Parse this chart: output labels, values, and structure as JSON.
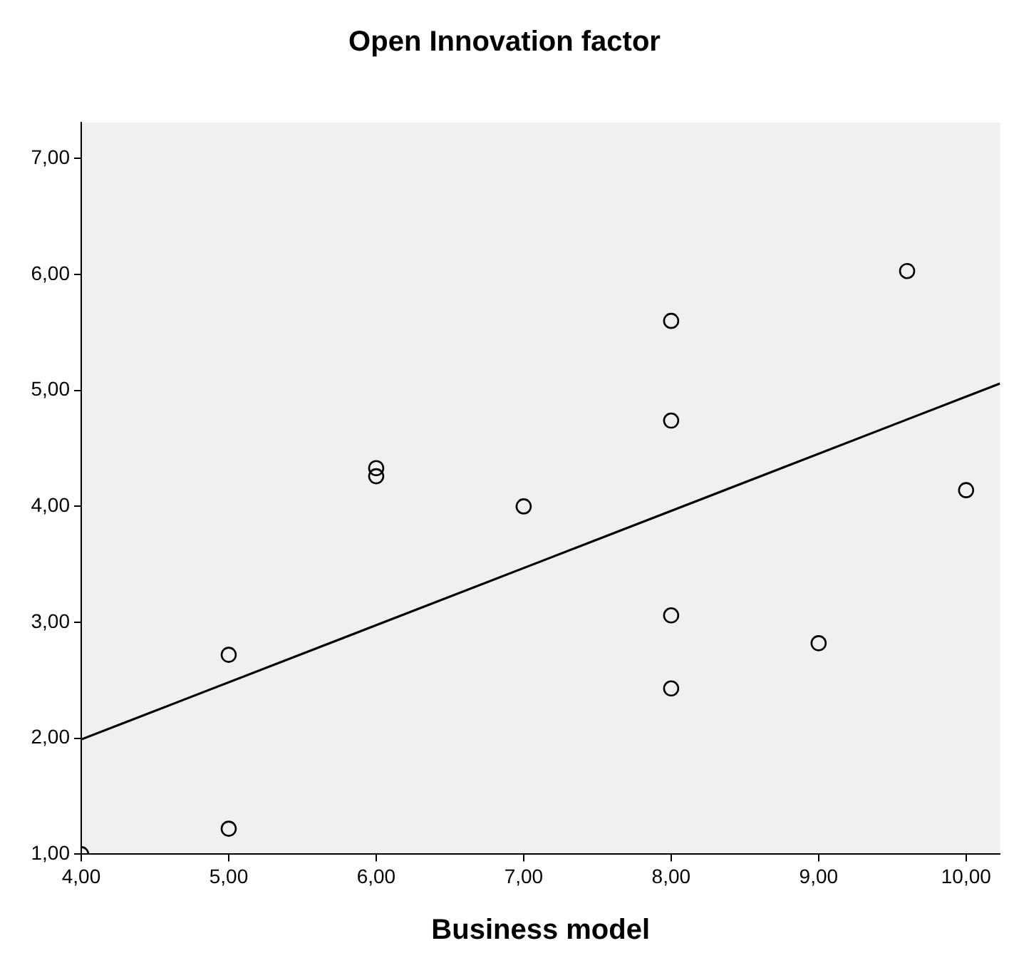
{
  "chart_data": {
    "type": "scatter",
    "title": "Open Innovation factor",
    "xlabel": "Business model",
    "xlim": [
      4,
      10.23
    ],
    "ylim": [
      1,
      7.31
    ],
    "xticks": [
      {
        "value": 4,
        "label": "4,00"
      },
      {
        "value": 5,
        "label": "5,00"
      },
      {
        "value": 6,
        "label": "6,00"
      },
      {
        "value": 7,
        "label": "7,00"
      },
      {
        "value": 8,
        "label": "8,00"
      },
      {
        "value": 9,
        "label": "9,00"
      },
      {
        "value": 10,
        "label": "10,00"
      }
    ],
    "yticks": [
      {
        "value": 1,
        "label": "1,00"
      },
      {
        "value": 2,
        "label": "2,00"
      },
      {
        "value": 3,
        "label": "3,00"
      },
      {
        "value": 4,
        "label": "4,00"
      },
      {
        "value": 5,
        "label": "5,00"
      },
      {
        "value": 6,
        "label": "6,00"
      },
      {
        "value": 7,
        "label": "7,00"
      }
    ],
    "grid": false,
    "legend": false,
    "marker": "circle",
    "series": [
      {
        "type": "scatter",
        "color": "#000000",
        "x": [
          4,
          5,
          5,
          6,
          6,
          7,
          8,
          8,
          8,
          8,
          9,
          9.6,
          10
        ],
        "values": [
          1.0,
          1.22,
          2.72,
          4.33,
          4.26,
          4.0,
          5.6,
          4.74,
          3.06,
          2.43,
          2.82,
          6.03,
          4.14
        ]
      },
      {
        "type": "line",
        "color": "#000000",
        "marker": "none",
        "line_style": "solid",
        "x": [
          4,
          10.23
        ],
        "values": [
          1.99,
          5.06
        ]
      }
    ]
  }
}
